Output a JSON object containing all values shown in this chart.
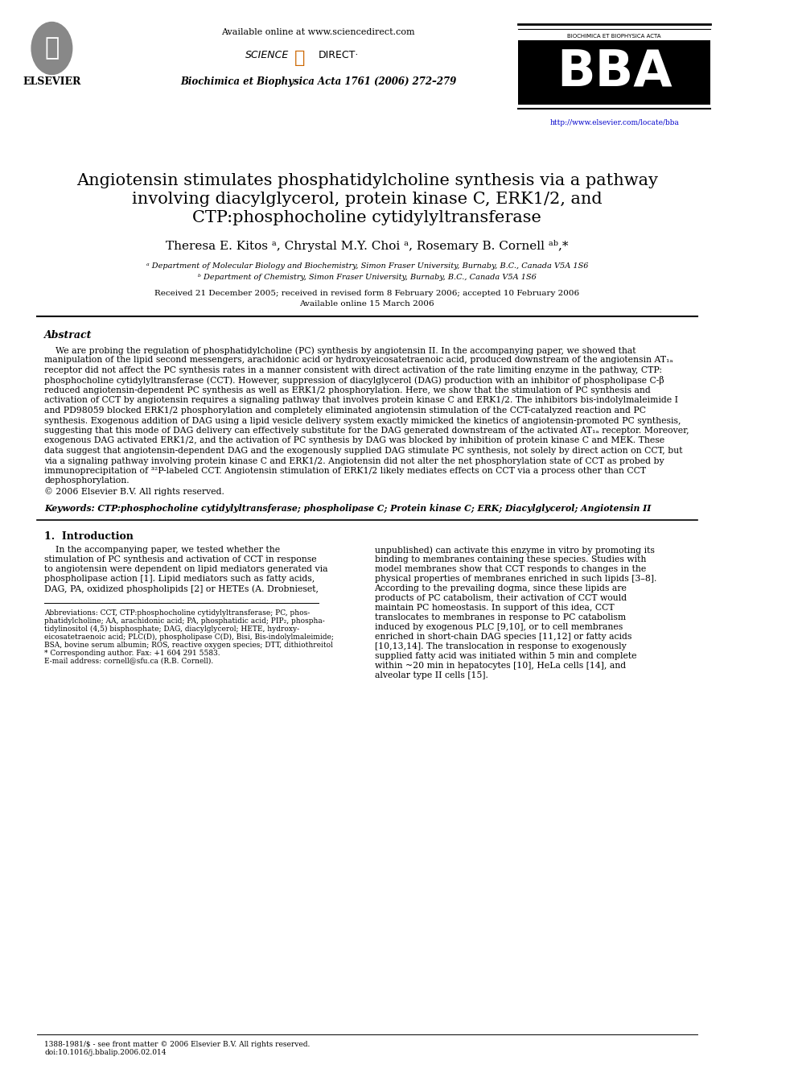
{
  "title_line1": "Angiotensin stimulates phosphatidylcholine synthesis via a pathway",
  "title_line2": "involving diacylglycerol, protein kinase C, ERK1/2, and",
  "title_line3": "CTP:phosphocholine cytidylyltransferase",
  "authors": "Theresa E. Kitos ᵃ, Chrystal M.Y. Choi ᵃ, Rosemary B. Cornell ᵃᵇ,*",
  "affil_a": "ᵃ Department of Molecular Biology and Biochemistry, Simon Fraser University, Burnaby, B.C., Canada V5A 1S6",
  "affil_b": "ᵇ Department of Chemistry, Simon Fraser University, Burnaby, B.C., Canada V5A 1S6",
  "dates": "Received 21 December 2005; received in revised form 8 February 2006; accepted 10 February 2006",
  "available": "Available online 15 March 2006",
  "journal": "Biochimica et Biophysica Acta 1761 (2006) 272–279",
  "available_online": "Available online at www.sciencedirect.com",
  "url": "http://www.elsevier.com/locate/bba",
  "abstract_title": "Abstract",
  "abstract_text": "    We are probing the regulation of phosphatidylcholine (PC) synthesis by angiotensin II. In the accompanying paper, we showed that manipulation of the lipid second messengers, arachidonic acid or hydroxyeicosatetraenoic acid, produced downstream of the angiotensin AT1a receptor did not affect the PC synthesis rates in a manner consistent with direct activation of the rate limiting enzyme in the pathway, CTP:phosphocholine cytidylyltransferase (CCT). However, suppression of diacylglycerol (DAG) production with an inhibitor of phospholipase C-β reduced angiotensin-dependent PC synthesis as well as ERK1/2 phosphorylation. Here, we show that the stimulation of PC synthesis and activation of CCT by angiotensin requires a signaling pathway that involves protein kinase C and ERK1/2. The inhibitors bis-indolylmaleimide I and PD98059 blocked ERK1/2 phosphorylation and completely eliminated angiotensin stimulation of the CCT-catalyzed reaction and PC synthesis. Exogenous addition of DAG using a lipid vesicle delivery system exactly mimicked the kinetics of angiotensin-promoted PC synthesis, suggesting that this mode of DAG delivery can effectively substitute for the DAG generated downstream of the activated AT1a receptor. Moreover, exogenous DAG activated ERK1/2, and the activation of PC synthesis by DAG was blocked by inhibition of protein kinase C and MEK. These data suggest that angiotensin-dependent DAG and the exogenously supplied DAG stimulate PC synthesis, not solely by direct action on CCT, but via a signaling pathway involving protein kinase C and ERK1/2. Angiotensin did not alter the net phosphorylation state of CCT as probed by immunoprecipitation of ³²P-labeled CCT. Angiotensin stimulation of ERK1/2 likely mediates effects on CCT via a process other than CCT dephosphorylation.\n© 2006 Elsevier B.V. All rights reserved.",
  "keywords": "Keywords: CTP:phosphocholine cytidylyltransferase; phospholipase C; Protein kinase C; ERK; Diacylglycerol; Angiotensin II",
  "section1_title": "1.  Introduction",
  "section1_col1": "    In the accompanying paper, we tested whether the stimulation of PC synthesis and activation of CCT in response to angiotensin were dependent on lipid mediators generated via phospholipase action [1]. Lipid mediators such as fatty acids, DAG, PA, oxidized phospholipids [2] or HETEs (A. Drobnieset,",
  "section1_col2": "unpublished) can activate this enzyme in vitro by promoting its binding to membranes containing these species. Studies with model membranes show that CCT responds to changes in the physical properties of membranes enriched in such lipids [3–8]. According to the prevailing dogma, since these lipids are products of PC catabolism, their activation of CCT would maintain PC homeostasis. In support of this idea, CCT translocates to membranes in response to PC catabolism induced by exogenous PLC [9,10], or to cell membranes enriched in short-chain DAG species [11,12] or fatty acids [10,13,14]. The translocation in response to exogenously supplied fatty acid was initiated within 5 min and complete within ~20 min in hepatocytes [10], HeLa cells [14], and alveolar type II cells [15].",
  "footnote_abbrev": "Abbreviations: CCT, CTP:phosphocholine cytidylyltransferase; PC, phosphatidylcholine; AA, arachidonic acid; PA, phosphatidic acid; PIP₂, phosphatidylinositol (4,5) bisphosphate; DAG, diacylglycerol; HETE, hydroxyeicosatetraenoic acid; PLC(D), phospholipase C(D), Bisi, Bis-indolylmaleimide; BSA, bovine serum albumin; ROS, reactive oxygen species; DTT, dithiothreitol",
  "footnote_corresponding": "* Corresponding author. Fax: +1 604 291 5583.",
  "footnote_email": "E-mail address: cornell@sfu.ca (R.B. Cornell).",
  "footer_issn": "1388-1981/$ - see front matter © 2006 Elsevier B.V. All rights reserved.",
  "footer_doi": "doi:10.1016/j.bbalip.2006.02.014",
  "bg_color": "#ffffff",
  "text_color": "#000000",
  "title_fontsize": 15,
  "body_fontsize": 7.5
}
